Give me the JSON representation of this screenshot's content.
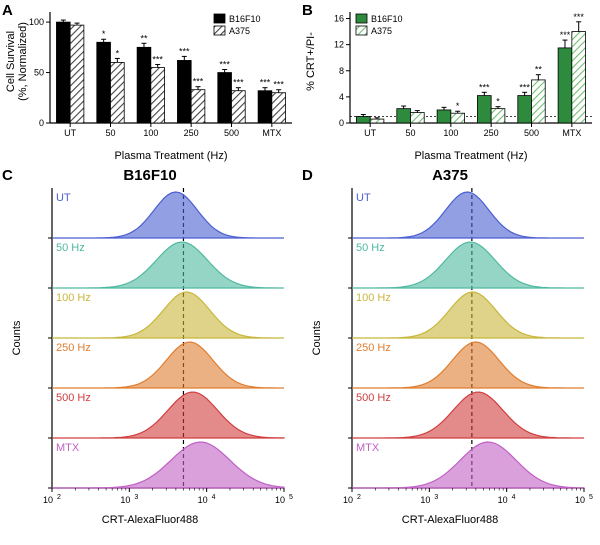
{
  "panels": {
    "A": {
      "label": "A",
      "type": "bar",
      "ylabel_line1": "Cell Survival",
      "ylabel_line2": "(%, Normalized)",
      "xlabel": "Plasma Treatment (Hz)",
      "categories": [
        "UT",
        "50",
        "100",
        "250",
        "500",
        "MTX"
      ],
      "series": [
        {
          "name": "B16F10",
          "color": "#000000",
          "pattern": "solid",
          "values": [
            100,
            80,
            75,
            62,
            50,
            32
          ],
          "err": [
            2,
            3,
            4,
            4,
            3,
            3
          ],
          "sig": [
            "",
            "*",
            "**",
            "***",
            "***",
            "***"
          ]
        },
        {
          "name": "A375",
          "color": "#444444",
          "pattern": "hatch",
          "values": [
            97,
            60,
            55,
            33,
            32,
            30
          ],
          "err": [
            2,
            4,
            3,
            3,
            3,
            3
          ],
          "sig": [
            "",
            "*",
            "***",
            "***",
            "***",
            "***"
          ]
        }
      ],
      "ylim": [
        0,
        110
      ],
      "ytick_step": 50,
      "yticks": [
        0,
        50,
        100
      ],
      "legend_pos": "top-right"
    },
    "B": {
      "label": "B",
      "type": "bar",
      "ylabel_line1": "% CRT+/PI-",
      "ylabel_line2": "",
      "xlabel": "Plasma Treatment (Hz)",
      "categories": [
        "UT",
        "50",
        "100",
        "250",
        "500",
        "MTX"
      ],
      "series": [
        {
          "name": "B16F10",
          "color": "#2e8b3d",
          "pattern": "solid",
          "values": [
            1,
            2.2,
            2,
            4.2,
            4.2,
            11.5
          ],
          "err": [
            0.3,
            0.4,
            0.4,
            0.5,
            0.5,
            1.2
          ],
          "sig": [
            "",
            "",
            "",
            "***",
            "***",
            "***"
          ]
        },
        {
          "name": "A375",
          "color": "#6fbf6f",
          "pattern": "hatch",
          "values": [
            0.6,
            1.6,
            1.5,
            2.2,
            6.6,
            14
          ],
          "err": [
            0.2,
            0.3,
            0.3,
            0.3,
            0.8,
            1.5
          ],
          "sig": [
            "",
            "",
            "*",
            "*",
            "**",
            "***"
          ]
        }
      ],
      "ylim": [
        0,
        17
      ],
      "ytick_step": 4,
      "yticks": [
        0,
        4,
        8,
        12,
        16
      ],
      "baseline": 1,
      "legend_pos": "top-left"
    },
    "C": {
      "label": "C",
      "type": "histogram_stack",
      "title": "B16F10",
      "xlabel": "CRT-AlexaFluor488",
      "ylabel": "Counts",
      "xlim": [
        2,
        5
      ],
      "xticks": [
        2,
        3,
        4,
        5
      ],
      "xtick_labels": [
        "10^2",
        "10^3",
        "10^4",
        "10^5"
      ],
      "ref_line_x": 3.7,
      "rows": [
        {
          "label": "UT",
          "color": "#4a5fd1",
          "mu": 3.6,
          "sigma": 0.28
        },
        {
          "label": "50 Hz",
          "color": "#4fb9a0",
          "mu": 3.68,
          "sigma": 0.33
        },
        {
          "label": "100 Hz",
          "color": "#c8b63a",
          "mu": 3.74,
          "sigma": 0.3
        },
        {
          "label": "250 Hz",
          "color": "#e07d2f",
          "mu": 3.78,
          "sigma": 0.3
        },
        {
          "label": "500 Hz",
          "color": "#d03d3d",
          "mu": 3.82,
          "sigma": 0.32
        },
        {
          "label": "MTX",
          "color": "#c060c5",
          "mu": 3.92,
          "sigma": 0.38
        }
      ]
    },
    "D": {
      "label": "D",
      "type": "histogram_stack",
      "title": "A375",
      "xlabel": "CRT-AlexaFluor488",
      "ylabel": "Counts",
      "xlim": [
        2,
        5
      ],
      "xticks": [
        2,
        3,
        4,
        5
      ],
      "xtick_labels": [
        "10^2",
        "10^3",
        "10^4",
        "10^5"
      ],
      "ref_line_x": 3.55,
      "rows": [
        {
          "label": "UT",
          "color": "#4a5fd1",
          "mu": 3.49,
          "sigma": 0.28
        },
        {
          "label": "50 Hz",
          "color": "#4fb9a0",
          "mu": 3.53,
          "sigma": 0.32
        },
        {
          "label": "100 Hz",
          "color": "#c8b63a",
          "mu": 3.56,
          "sigma": 0.3
        },
        {
          "label": "250 Hz",
          "color": "#e07d2f",
          "mu": 3.6,
          "sigma": 0.3
        },
        {
          "label": "500 Hz",
          "color": "#d03d3d",
          "mu": 3.63,
          "sigma": 0.32
        },
        {
          "label": "MTX",
          "color": "#c060c5",
          "mu": 3.76,
          "sigma": 0.36
        }
      ]
    }
  },
  "styling": {
    "axis_color": "#000000",
    "axis_width": 1.2,
    "tick_fontsize": 9,
    "label_fontsize": 11,
    "title_fontsize": 15,
    "bar_width": 0.4,
    "fill_opacity": 0.6
  }
}
